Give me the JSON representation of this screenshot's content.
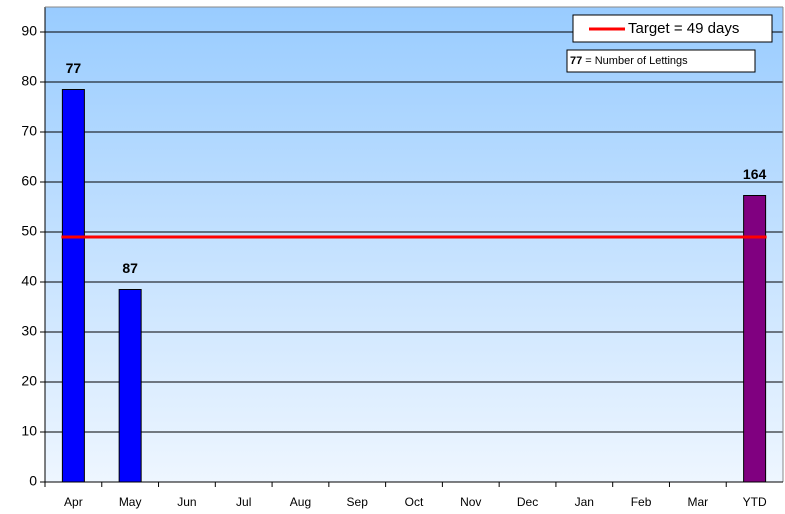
{
  "chart_data": {
    "type": "bar",
    "categories": [
      "Apr",
      "May",
      "Jun",
      "Jul",
      "Aug",
      "Sep",
      "Oct",
      "Nov",
      "Dec",
      "Jan",
      "Feb",
      "Mar",
      "YTD"
    ],
    "values": [
      78.5,
      38.5,
      null,
      null,
      null,
      null,
      null,
      null,
      null,
      null,
      null,
      null,
      57.3
    ],
    "colors": [
      "#0000ff",
      "#0000ff",
      "#0000ff",
      "#0000ff",
      "#0000ff",
      "#0000ff",
      "#0000ff",
      "#0000ff",
      "#0000ff",
      "#0000ff",
      "#0000ff",
      "#0000ff",
      "#800080"
    ],
    "lettings": [
      "77",
      "87",
      null,
      null,
      null,
      null,
      null,
      null,
      null,
      null,
      null,
      null,
      "164"
    ],
    "target": {
      "name": "Target = 49 days",
      "value": 49,
      "color": "#ff0000"
    },
    "note_key": "77",
    "note_text": "= Number of Lettings",
    "ylim": [
      0,
      95
    ],
    "yticks": [
      0,
      10,
      20,
      30,
      40,
      50,
      60,
      70,
      80,
      90
    ],
    "grid": true
  }
}
